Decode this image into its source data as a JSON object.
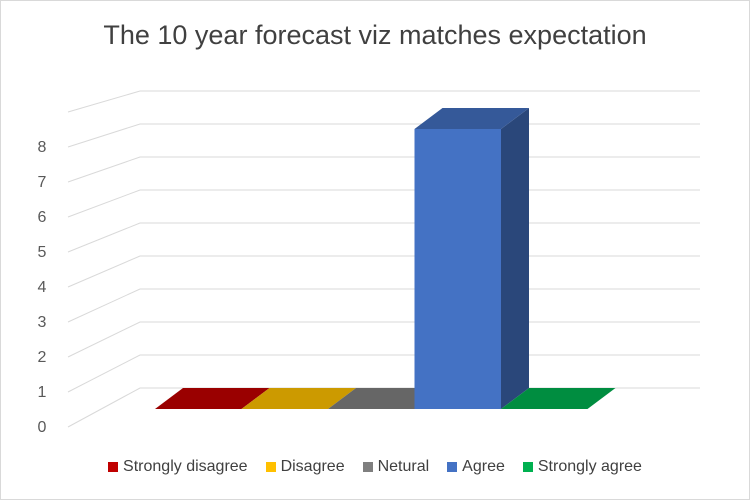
{
  "chart_data": {
    "type": "bar",
    "title": "The 10 year forecast viz matches expectation",
    "categories": [
      "Strongly disagree",
      "Disagree",
      "Netural",
      "Agree",
      "Strongly agree"
    ],
    "values": [
      0,
      0,
      0,
      8,
      0
    ],
    "colors": [
      "#c00000",
      "#ffc000",
      "#7f7f7f",
      "#4472c4",
      "#00b050"
    ],
    "yticks": [
      "0",
      "1",
      "2",
      "3",
      "4",
      "5",
      "6",
      "7",
      "8"
    ],
    "ylim": [
      0,
      8
    ],
    "legend_position": "bottom",
    "grid": true,
    "style": "3d-column"
  }
}
